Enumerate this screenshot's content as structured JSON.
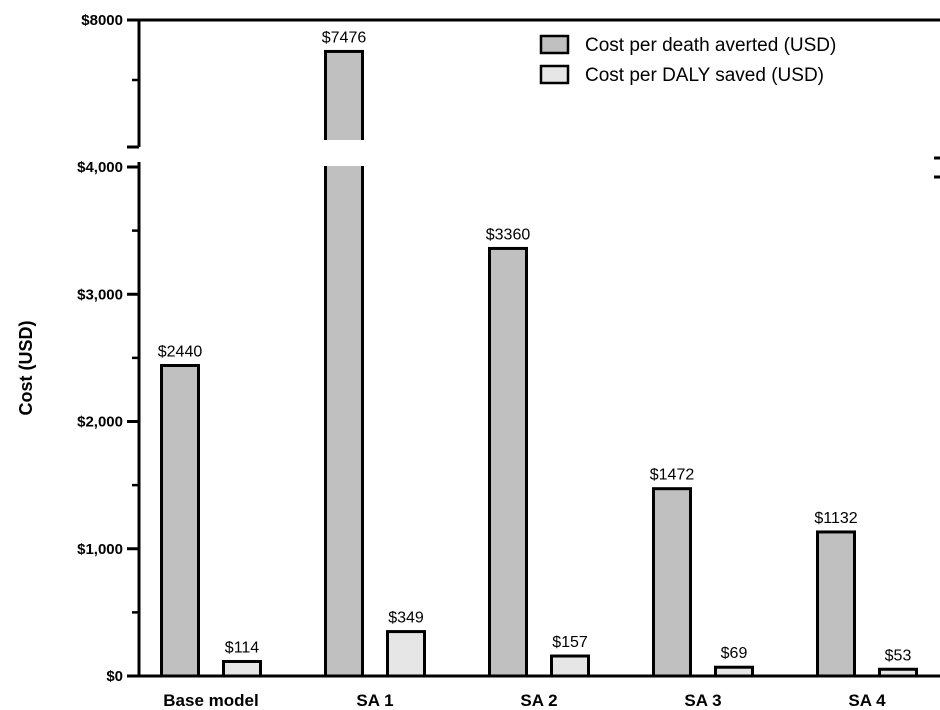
{
  "chart_data": {
    "type": "bar",
    "categories": [
      "Base model",
      "SA 1",
      "SA 2",
      "SA 3",
      "SA 4"
    ],
    "series": [
      {
        "name": "Cost per death averted (USD)",
        "values": [
          2440,
          7476,
          3360,
          1472,
          1132
        ],
        "labels": [
          "$2440",
          "$7476",
          "$3360",
          "$1472",
          "$1132"
        ],
        "color": "#c0c0c0"
      },
      {
        "name": "Cost per DALY saved (USD)",
        "values": [
          114,
          349,
          157,
          69,
          53
        ],
        "labels": [
          "$114",
          "$349",
          "$157",
          "$69",
          "$53"
        ],
        "color": "#e6e6e6"
      }
    ],
    "ylabel": "Cost (USD)",
    "ylim": [
      0,
      8000
    ],
    "axis_break": [
      4000,
      6000
    ],
    "y_ticks": [
      {
        "value": 0,
        "label": "$0"
      },
      {
        "value": 1000,
        "label": "$1,000"
      },
      {
        "value": 2000,
        "label": "$2,000"
      },
      {
        "value": 3000,
        "label": "$3,000"
      },
      {
        "value": 4000,
        "label": "$4,000"
      },
      {
        "value": 8000,
        "label": "$8000"
      }
    ],
    "y_minor_ticks": [
      500,
      1500,
      2500,
      3500,
      7000
    ],
    "grid": false,
    "legend_position": "top-right"
  }
}
